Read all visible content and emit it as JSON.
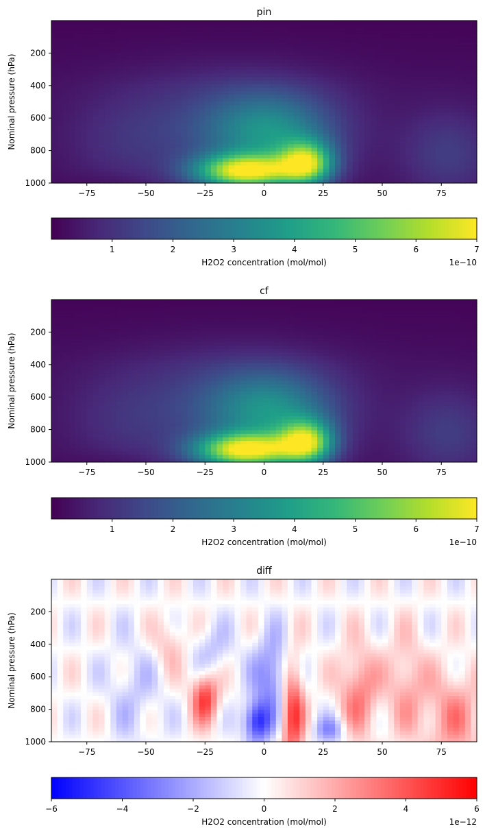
{
  "chart_data": [
    {
      "type": "heatmap",
      "title": "pin",
      "xlabel": "",
      "ylabel": "Nominal pressure (hPa)",
      "xlim": [
        -90,
        90
      ],
      "ylim": [
        1000,
        0
      ],
      "xticks": [
        -75,
        -50,
        -25,
        0,
        25,
        50,
        75
      ],
      "yticks": [
        200,
        400,
        600,
        800,
        1000
      ],
      "colormap": "viridis",
      "field": "h2o2",
      "colorbar": {
        "label": "H2O2 concentration (mol/mol)",
        "range": [
          0,
          7
        ],
        "ticks": [
          1,
          2,
          3,
          4,
          5,
          6,
          7
        ],
        "scale_text": "1e−10"
      }
    },
    {
      "type": "heatmap",
      "title": "cf",
      "xlabel": "",
      "ylabel": "Nominal pressure (hPa)",
      "xlim": [
        -90,
        90
      ],
      "ylim": [
        1000,
        0
      ],
      "xticks": [
        -75,
        -50,
        -25,
        0,
        25,
        50,
        75
      ],
      "yticks": [
        200,
        400,
        600,
        800,
        1000
      ],
      "colormap": "viridis",
      "field": "h2o2",
      "colorbar": {
        "label": "H2O2 concentration (mol/mol)",
        "range": [
          0,
          7
        ],
        "ticks": [
          1,
          2,
          3,
          4,
          5,
          6,
          7
        ],
        "scale_text": "1e−10"
      }
    },
    {
      "type": "heatmap",
      "title": "diff",
      "xlabel": "",
      "ylabel": "Nominal pressure (hPa)",
      "xlim": [
        -90,
        90
      ],
      "ylim": [
        1000,
        0
      ],
      "xticks": [
        -75,
        -50,
        -25,
        0,
        25,
        50,
        75
      ],
      "yticks": [
        200,
        400,
        600,
        800,
        1000
      ],
      "colormap": "bwr",
      "field": "diff",
      "colorbar": {
        "label": "H2O2 concentration (mol/mol)",
        "range": [
          -6,
          6
        ],
        "ticks": [
          -6,
          -4,
          -2,
          0,
          2,
          4,
          6
        ],
        "scale_text": "1e−12"
      }
    }
  ]
}
